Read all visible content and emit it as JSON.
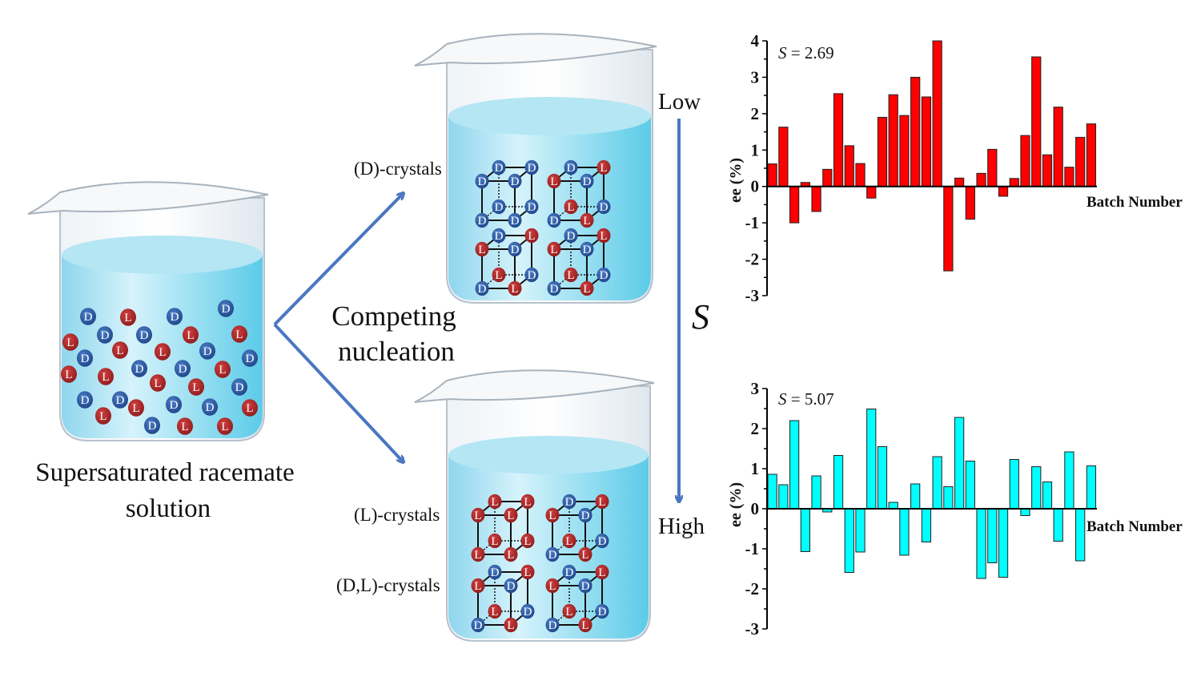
{
  "left_beaker": {
    "caption_line1": "Supersaturated racemate",
    "caption_line2": "solution",
    "molecules": [
      "D",
      "L",
      "D",
      "D",
      "D",
      "D",
      "L",
      "L",
      "L",
      "L",
      "L",
      "D",
      "D",
      "D",
      "L",
      "L",
      "D",
      "D",
      "L",
      "L",
      "L",
      "D",
      "D",
      "D",
      "L",
      "D",
      "D",
      "L",
      "L",
      "D",
      "L",
      "L"
    ]
  },
  "middle": {
    "competing_line1": "Competing",
    "competing_line2": "nucleation",
    "d_crystals_label": "(D)-crystals",
    "l_crystals_label": "(L)-crystals",
    "dl_crystals_label": "(D,L)-crystals",
    "top_cubes": [
      "DDDDDDDD",
      "DLLDLDDL",
      "DLLDLDDL",
      "DLLDLDDL"
    ],
    "bottom_cubes": [
      "LLLLLLLL",
      "DLLDLDDL",
      "DLLDLDDL",
      "DLLDLDDL"
    ]
  },
  "supersaturation_axis": {
    "low_label": "Low",
    "high_label": "High",
    "symbol": "S"
  },
  "colors": {
    "d_molecule": "#2f5fa8",
    "l_molecule": "#b22a2a",
    "arrow": "#4a77c0",
    "liquid": "#7fd3ec",
    "top_chart_bars": "#ff0000",
    "bottom_chart_bars": "#00ffff"
  },
  "chart_data": [
    {
      "type": "bar",
      "annotation_symbol": "S",
      "annotation_value": "= 2.69",
      "xlabel": "Batch Number",
      "ylabel": "ee (%)",
      "ylim": [
        -3,
        4
      ],
      "yticks": [
        "4",
        "3",
        "2",
        "1",
        "0",
        "-1",
        "-2",
        "-3"
      ],
      "grid": false,
      "values": [
        0.62,
        1.63,
        -1.0,
        0.11,
        -0.69,
        0.47,
        2.55,
        1.12,
        0.63,
        -0.32,
        1.9,
        2.52,
        1.95,
        3.0,
        2.46,
        4.0,
        -2.32,
        0.23,
        -0.9,
        0.36,
        1.02,
        -0.27,
        0.22,
        1.4,
        3.56,
        0.87,
        2.18,
        0.53,
        1.35,
        1.72
      ]
    },
    {
      "type": "bar",
      "annotation_symbol": "S",
      "annotation_value": "= 5.07",
      "xlabel": "Batch Number",
      "ylabel": "ee (%)",
      "ylim": [
        -3,
        3
      ],
      "yticks": [
        "3",
        "2",
        "1",
        "0",
        "-1",
        "-2",
        "-3"
      ],
      "grid": false,
      "values": [
        0.86,
        0.6,
        2.2,
        -1.07,
        0.82,
        -0.08,
        1.33,
        -1.59,
        -1.08,
        2.49,
        1.55,
        0.16,
        -1.16,
        0.62,
        -0.83,
        1.3,
        0.55,
        2.28,
        1.19,
        -1.74,
        -1.35,
        -1.71,
        1.23,
        -0.17,
        1.05,
        0.67,
        -0.81,
        1.42,
        -1.3,
        1.07
      ]
    }
  ]
}
